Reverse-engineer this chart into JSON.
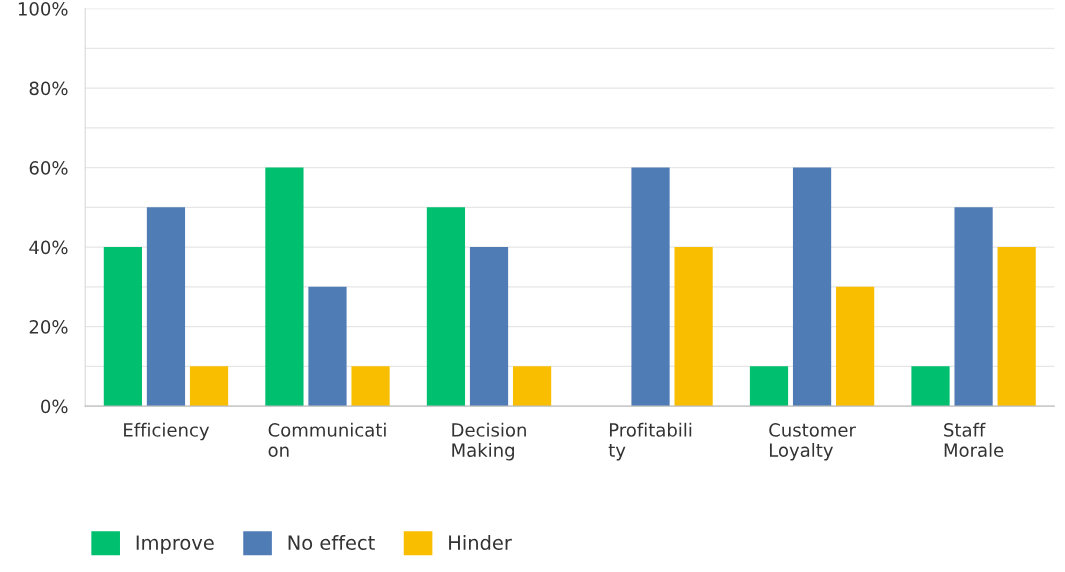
{
  "chart_data": {
    "type": "bar",
    "categories": [
      "Efficiency",
      "Communicati\non",
      "Decision\nMaking",
      "Profitabili\nty",
      "Customer\nLoyalty",
      "Staff\nMorale"
    ],
    "series": [
      {
        "name": "Improve",
        "color": "#00bf6f",
        "values": [
          40,
          60,
          50,
          0,
          10,
          10
        ]
      },
      {
        "name": "No effect",
        "color": "#507cb6",
        "values": [
          50,
          30,
          40,
          60,
          60,
          50
        ]
      },
      {
        "name": "Hinder",
        "color": "#f9be00",
        "values": [
          10,
          10,
          10,
          40,
          30,
          40
        ]
      }
    ],
    "ylim": [
      0,
      100
    ],
    "yticks": [
      {
        "value": 0,
        "label": "0%"
      },
      {
        "value": 10,
        "label": null
      },
      {
        "value": 20,
        "label": "20%"
      },
      {
        "value": 30,
        "label": null
      },
      {
        "value": 40,
        "label": "40%"
      },
      {
        "value": 50,
        "label": null
      },
      {
        "value": 60,
        "label": "60%"
      },
      {
        "value": 70,
        "label": null
      },
      {
        "value": 80,
        "label": "80%"
      },
      {
        "value": 90,
        "label": null
      },
      {
        "value": 100,
        "label": "100%"
      }
    ],
    "grid": "y",
    "legend": "bottom left"
  }
}
